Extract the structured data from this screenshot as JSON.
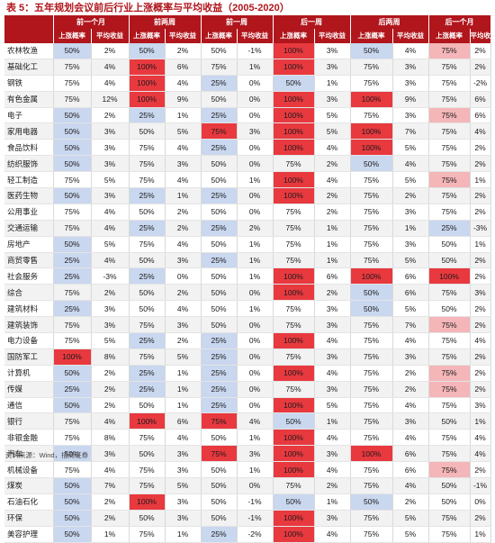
{
  "title": "表 5：五年规划会议前后行业上涨概率与平均收益（2005-2020）",
  "periods": [
    "前一个月",
    "前两周",
    "前一周",
    "后一周",
    "后两周",
    "后一个月"
  ],
  "sub_headers": {
    "prob": "上涨概率",
    "ret": "平均收益"
  },
  "colors": {
    "accent": "#b0161c",
    "red_strong": "#e8393f",
    "red_light": "#f4b6b8",
    "blue_strong": "#8faadc",
    "blue_light": "#c9d7ef"
  },
  "rows": [
    {
      "name": "农林牧渔",
      "v": [
        "50%",
        "2%",
        "50%",
        "2%",
        "50%",
        "-1%",
        "100%",
        "3%",
        "50%",
        "4%",
        "75%",
        "2%"
      ],
      "h": [
        "b",
        "",
        "b",
        "",
        "",
        "",
        "r",
        "",
        "b",
        "",
        "rl",
        ""
      ]
    },
    {
      "name": "基础化工",
      "v": [
        "75%",
        "4%",
        "100%",
        "6%",
        "75%",
        "1%",
        "100%",
        "3%",
        "75%",
        "3%",
        "75%",
        "2%"
      ],
      "h": [
        "",
        "",
        "r",
        "",
        "",
        "",
        "r",
        "",
        "",
        "",
        "",
        ""
      ]
    },
    {
      "name": "钢铁",
      "v": [
        "75%",
        "4%",
        "100%",
        "4%",
        "25%",
        "0%",
        "50%",
        "1%",
        "75%",
        "3%",
        "75%",
        "-2%"
      ],
      "h": [
        "",
        "",
        "r",
        "",
        "b",
        "",
        "b",
        "",
        "",
        "",
        "",
        ""
      ]
    },
    {
      "name": "有色金属",
      "v": [
        "75%",
        "12%",
        "100%",
        "9%",
        "50%",
        "0%",
        "100%",
        "3%",
        "100%",
        "9%",
        "75%",
        "6%"
      ],
      "h": [
        "",
        "",
        "r",
        "",
        "",
        "",
        "r",
        "",
        "r",
        "",
        "",
        ""
      ]
    },
    {
      "name": "电子",
      "v": [
        "50%",
        "2%",
        "25%",
        "1%",
        "25%",
        "0%",
        "100%",
        "5%",
        "75%",
        "3%",
        "75%",
        "6%"
      ],
      "h": [
        "b",
        "",
        "b",
        "",
        "b",
        "",
        "r",
        "",
        "",
        "",
        "rl",
        ""
      ]
    },
    {
      "name": "家用电器",
      "v": [
        "50%",
        "3%",
        "50%",
        "5%",
        "75%",
        "3%",
        "100%",
        "5%",
        "100%",
        "7%",
        "75%",
        "4%"
      ],
      "h": [
        "b",
        "",
        "",
        "",
        "r",
        "",
        "r",
        "",
        "r",
        "",
        "",
        ""
      ]
    },
    {
      "name": "食品饮料",
      "v": [
        "50%",
        "3%",
        "75%",
        "4%",
        "25%",
        "0%",
        "100%",
        "4%",
        "100%",
        "5%",
        "75%",
        "2%"
      ],
      "h": [
        "b",
        "",
        "",
        "",
        "b",
        "",
        "r",
        "",
        "r",
        "",
        "",
        ""
      ]
    },
    {
      "name": "纺织服饰",
      "v": [
        "50%",
        "3%",
        "75%",
        "3%",
        "50%",
        "0%",
        "75%",
        "2%",
        "50%",
        "4%",
        "75%",
        "2%"
      ],
      "h": [
        "b",
        "",
        "",
        "",
        "",
        "",
        "",
        "",
        "b",
        "",
        "",
        ""
      ]
    },
    {
      "name": "轻工制造",
      "v": [
        "75%",
        "5%",
        "75%",
        "4%",
        "50%",
        "1%",
        "100%",
        "4%",
        "75%",
        "5%",
        "75%",
        "1%"
      ],
      "h": [
        "",
        "",
        "",
        "",
        "",
        "",
        "r",
        "",
        "",
        "",
        "rl",
        ""
      ]
    },
    {
      "name": "医药生物",
      "v": [
        "50%",
        "3%",
        "25%",
        "1%",
        "25%",
        "0%",
        "100%",
        "2%",
        "75%",
        "2%",
        "75%",
        "2%"
      ],
      "h": [
        "b",
        "",
        "b",
        "",
        "b",
        "",
        "r",
        "",
        "",
        "",
        "",
        ""
      ]
    },
    {
      "name": "公用事业",
      "v": [
        "75%",
        "4%",
        "50%",
        "2%",
        "50%",
        "0%",
        "75%",
        "2%",
        "75%",
        "3%",
        "75%",
        "2%"
      ],
      "h": [
        "",
        "",
        "",
        "",
        "",
        "",
        "",
        "",
        "",
        "",
        "",
        ""
      ]
    },
    {
      "name": "交通运输",
      "v": [
        "75%",
        "4%",
        "25%",
        "2%",
        "25%",
        "2%",
        "75%",
        "1%",
        "75%",
        "1%",
        "25%",
        "-3%"
      ],
      "h": [
        "",
        "",
        "b",
        "",
        "b",
        "",
        "",
        "",
        "",
        "",
        "b",
        ""
      ]
    },
    {
      "name": "房地产",
      "v": [
        "50%",
        "5%",
        "75%",
        "4%",
        "50%",
        "1%",
        "75%",
        "1%",
        "75%",
        "3%",
        "50%",
        "1%"
      ],
      "h": [
        "b",
        "",
        "",
        "",
        "",
        "",
        "",
        "",
        "",
        "",
        "",
        ""
      ]
    },
    {
      "name": "商贸零售",
      "v": [
        "25%",
        "4%",
        "50%",
        "3%",
        "25%",
        "1%",
        "75%",
        "1%",
        "75%",
        "5%",
        "50%",
        "2%"
      ],
      "h": [
        "b",
        "",
        "",
        "",
        "b",
        "",
        "",
        "",
        "",
        "",
        "",
        ""
      ]
    },
    {
      "name": "社会服务",
      "v": [
        "25%",
        "-3%",
        "25%",
        "0%",
        "50%",
        "1%",
        "100%",
        "6%",
        "100%",
        "6%",
        "100%",
        "2%"
      ],
      "h": [
        "b",
        "",
        "b",
        "",
        "",
        "",
        "r",
        "",
        "r",
        "",
        "r",
        ""
      ]
    },
    {
      "name": "综合",
      "v": [
        "75%",
        "2%",
        "50%",
        "2%",
        "50%",
        "0%",
        "100%",
        "2%",
        "50%",
        "6%",
        "75%",
        "3%"
      ],
      "h": [
        "",
        "",
        "",
        "",
        "",
        "",
        "r",
        "",
        "b",
        "",
        "",
        ""
      ]
    },
    {
      "name": "建筑材料",
      "v": [
        "25%",
        "3%",
        "50%",
        "4%",
        "50%",
        "1%",
        "75%",
        "3%",
        "50%",
        "5%",
        "50%",
        "2%"
      ],
      "h": [
        "b",
        "",
        "",
        "",
        "",
        "",
        "",
        "",
        "b",
        "",
        "",
        ""
      ]
    },
    {
      "name": "建筑装饰",
      "v": [
        "75%",
        "3%",
        "75%",
        "3%",
        "50%",
        "0%",
        "75%",
        "3%",
        "75%",
        "7%",
        "75%",
        "2%"
      ],
      "h": [
        "",
        "",
        "",
        "",
        "",
        "",
        "",
        "",
        "",
        "",
        "rl",
        ""
      ]
    },
    {
      "name": "电力设备",
      "v": [
        "75%",
        "5%",
        "25%",
        "2%",
        "25%",
        "0%",
        "100%",
        "4%",
        "75%",
        "4%",
        "75%",
        "4%"
      ],
      "h": [
        "",
        "",
        "b",
        "",
        "b",
        "",
        "r",
        "",
        "",
        "",
        "",
        ""
      ]
    },
    {
      "name": "国防军工",
      "v": [
        "100%",
        "8%",
        "75%",
        "5%",
        "25%",
        "0%",
        "75%",
        "3%",
        "75%",
        "3%",
        "75%",
        "2%"
      ],
      "h": [
        "r",
        "",
        "",
        "",
        "b",
        "",
        "",
        "",
        "",
        "",
        "",
        ""
      ]
    },
    {
      "name": "计算机",
      "v": [
        "50%",
        "2%",
        "25%",
        "1%",
        "25%",
        "0%",
        "100%",
        "4%",
        "75%",
        "2%",
        "75%",
        "2%"
      ],
      "h": [
        "b",
        "",
        "b",
        "",
        "b",
        "",
        "r",
        "",
        "",
        "",
        "rl",
        ""
      ]
    },
    {
      "name": "传媒",
      "v": [
        "25%",
        "2%",
        "25%",
        "1%",
        "25%",
        "0%",
        "75%",
        "3%",
        "75%",
        "2%",
        "75%",
        "2%"
      ],
      "h": [
        "b",
        "",
        "b",
        "",
        "b",
        "",
        "",
        "",
        "",
        "",
        "rl",
        ""
      ]
    },
    {
      "name": "通信",
      "v": [
        "50%",
        "2%",
        "50%",
        "1%",
        "25%",
        "0%",
        "100%",
        "5%",
        "75%",
        "4%",
        "75%",
        "3%"
      ],
      "h": [
        "b",
        "",
        "",
        "",
        "b",
        "",
        "r",
        "",
        "",
        "",
        "",
        ""
      ]
    },
    {
      "name": "银行",
      "v": [
        "75%",
        "4%",
        "100%",
        "6%",
        "75%",
        "4%",
        "50%",
        "1%",
        "75%",
        "3%",
        "50%",
        "1%"
      ],
      "h": [
        "",
        "",
        "r",
        "",
        "r",
        "",
        "b",
        "",
        "",
        "",
        "",
        ""
      ]
    },
    {
      "name": "非银金融",
      "v": [
        "75%",
        "8%",
        "75%",
        "4%",
        "50%",
        "1%",
        "100%",
        "4%",
        "75%",
        "4%",
        "75%",
        "4%"
      ],
      "h": [
        "",
        "",
        "",
        "",
        "",
        "",
        "r",
        "",
        "",
        "",
        "",
        ""
      ]
    },
    {
      "name": "汽车",
      "v": [
        "50%",
        "3%",
        "50%",
        "3%",
        "75%",
        "3%",
        "100%",
        "3%",
        "100%",
        "6%",
        "75%",
        "4%"
      ],
      "h": [
        "b",
        "",
        "",
        "",
        "r",
        "",
        "r",
        "",
        "r",
        "",
        "",
        ""
      ]
    },
    {
      "name": "机械设备",
      "v": [
        "75%",
        "4%",
        "75%",
        "3%",
        "50%",
        "1%",
        "100%",
        "4%",
        "75%",
        "6%",
        "75%",
        "2%"
      ],
      "h": [
        "",
        "",
        "",
        "",
        "",
        "",
        "r",
        "",
        "",
        "",
        "rl",
        ""
      ]
    },
    {
      "name": "煤炭",
      "v": [
        "50%",
        "7%",
        "75%",
        "5%",
        "50%",
        "0%",
        "75%",
        "2%",
        "75%",
        "4%",
        "50%",
        "-1%"
      ],
      "h": [
        "b",
        "",
        "",
        "",
        "",
        "",
        "",
        "",
        "",
        "",
        "",
        ""
      ]
    },
    {
      "name": "石油石化",
      "v": [
        "50%",
        "2%",
        "100%",
        "3%",
        "50%",
        "-1%",
        "50%",
        "1%",
        "50%",
        "2%",
        "50%",
        "0%"
      ],
      "h": [
        "b",
        "",
        "r",
        "",
        "",
        "",
        "b",
        "",
        "b",
        "",
        "",
        ""
      ]
    },
    {
      "name": "环保",
      "v": [
        "50%",
        "2%",
        "50%",
        "3%",
        "50%",
        "-1%",
        "100%",
        "3%",
        "75%",
        "5%",
        "75%",
        "2%"
      ],
      "h": [
        "b",
        "",
        "",
        "",
        "",
        "",
        "r",
        "",
        "",
        "",
        "",
        ""
      ]
    },
    {
      "name": "美容护理",
      "v": [
        "50%",
        "1%",
        "75%",
        "1%",
        "25%",
        "-2%",
        "100%",
        "4%",
        "75%",
        "5%",
        "75%",
        "1%"
      ],
      "h": [
        "b",
        "",
        "",
        "",
        "b",
        "",
        "r",
        "",
        "",
        "",
        "",
        ""
      ]
    }
  ],
  "source": "资料来源：Wind，招商证券"
}
